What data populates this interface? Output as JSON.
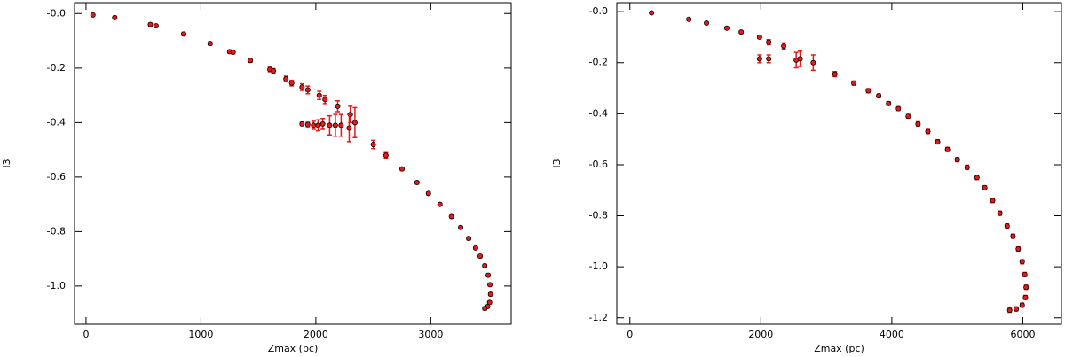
{
  "chart_data": [
    {
      "type": "scatter",
      "xlabel": "Zmax (pc)",
      "ylabel": "I3",
      "color": "#e8191a",
      "edge_color": "#000000",
      "xlim": [
        -100,
        3700
      ],
      "ylim": [
        -1.14,
        0.04
      ],
      "xticks": [
        0,
        1000,
        2000,
        3000
      ],
      "yticks": [
        {
          "value": 0,
          "label": "-0.0"
        },
        -0.2,
        -0.4,
        -0.6,
        -0.8,
        {
          "value": -1,
          "label": "-1.0"
        }
      ],
      "x": [
        60,
        250,
        560,
        610,
        850,
        1080,
        1250,
        1280,
        1430,
        1600,
        1630,
        1740,
        1790,
        1880,
        1930,
        2030,
        2080,
        2190,
        2300,
        1880,
        1930,
        1980,
        2020,
        2060,
        2120,
        2170,
        2220,
        2290,
        2340,
        2500,
        2610,
        2750,
        2880,
        2980,
        3080,
        3180,
        3260,
        3330,
        3390,
        3430,
        3470,
        3500,
        3515,
        3520,
        3512,
        3495,
        3470
      ],
      "values": [
        -0.005,
        -0.015,
        -0.04,
        -0.045,
        -0.075,
        -0.11,
        -0.14,
        -0.142,
        -0.172,
        -0.205,
        -0.21,
        -0.24,
        -0.255,
        -0.27,
        -0.28,
        -0.3,
        -0.315,
        -0.34,
        -0.37,
        -0.405,
        -0.407,
        -0.41,
        -0.41,
        -0.405,
        -0.41,
        -0.41,
        -0.41,
        -0.42,
        -0.4,
        -0.48,
        -0.52,
        -0.57,
        -0.62,
        -0.66,
        -0.7,
        -0.745,
        -0.785,
        -0.825,
        -0.86,
        -0.89,
        -0.925,
        -0.96,
        -0.995,
        -1.03,
        -1.06,
        -1.075,
        -1.082
      ],
      "errors": [
        0.005,
        0.005,
        0.005,
        0.005,
        0.006,
        0.006,
        0.006,
        0.006,
        0.007,
        0.008,
        0.008,
        0.01,
        0.01,
        0.012,
        0.014,
        0.015,
        0.015,
        0.02,
        0.03,
        0.006,
        0.008,
        0.015,
        0.02,
        0.02,
        0.035,
        0.04,
        0.04,
        0.05,
        0.055,
        0.015,
        0.01,
        0.006,
        0.005,
        0.005,
        0.005,
        0.005,
        0.005,
        0.005,
        0.005,
        0.005,
        0.005,
        0.005,
        0.005,
        0.005,
        0.005,
        0.005,
        0.005
      ]
    },
    {
      "type": "scatter",
      "xlabel": "Zmax (pc)",
      "ylabel": "I3",
      "color": "#e8191a",
      "edge_color": "#000000",
      "xlim": [
        -200,
        6590
      ],
      "ylim": [
        -1.225,
        0.035
      ],
      "xticks": [
        0,
        2000,
        4000,
        6000
      ],
      "yticks": [
        {
          "value": 0,
          "label": "-0.0"
        },
        -0.2,
        -0.4,
        -0.6,
        -0.8,
        {
          "value": -1,
          "label": "-1.0"
        },
        -1.2
      ],
      "x": [
        330,
        900,
        1170,
        1480,
        1700,
        1980,
        2120,
        2350,
        1980,
        2120,
        2540,
        2600,
        2800,
        3130,
        3420,
        3640,
        3800,
        3950,
        4100,
        4250,
        4400,
        4550,
        4700,
        4850,
        5000,
        5150,
        5300,
        5420,
        5540,
        5650,
        5760,
        5850,
        5930,
        5990,
        6030,
        6050,
        6040,
        5990,
        5900,
        5800
      ],
      "values": [
        -0.005,
        -0.03,
        -0.045,
        -0.065,
        -0.08,
        -0.1,
        -0.12,
        -0.135,
        -0.185,
        -0.185,
        -0.19,
        -0.185,
        -0.2,
        -0.245,
        -0.28,
        -0.31,
        -0.33,
        -0.36,
        -0.38,
        -0.41,
        -0.44,
        -0.47,
        -0.51,
        -0.54,
        -0.58,
        -0.61,
        -0.65,
        -0.69,
        -0.74,
        -0.79,
        -0.84,
        -0.88,
        -0.93,
        -0.98,
        -1.03,
        -1.08,
        -1.12,
        -1.15,
        -1.165,
        -1.17
      ],
      "errors": [
        0.004,
        0.004,
        0.004,
        0.005,
        0.005,
        0.006,
        0.01,
        0.012,
        0.015,
        0.015,
        0.03,
        0.03,
        0.03,
        0.01,
        0.008,
        0.008,
        0.007,
        0.007,
        0.007,
        0.007,
        0.008,
        0.008,
        0.008,
        0.008,
        0.008,
        0.008,
        0.008,
        0.008,
        0.008,
        0.008,
        0.008,
        0.008,
        0.008,
        0.008,
        0.008,
        0.008,
        0.008,
        0.008,
        0.008,
        0.008
      ]
    }
  ]
}
